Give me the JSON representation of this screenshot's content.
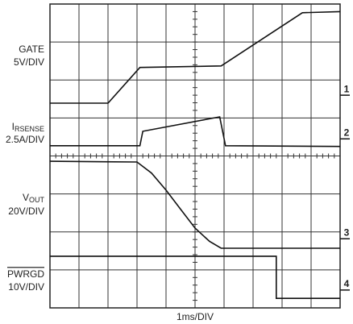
{
  "chart_data": {
    "type": "line",
    "x_label": "1ms/DIV",
    "xlim": [
      0,
      10
    ],
    "ylim": [
      0,
      8
    ],
    "xticks": [
      0,
      1,
      2,
      3,
      4,
      5,
      6,
      7,
      8,
      9,
      10
    ],
    "yticks": [
      0,
      1,
      2,
      3,
      4,
      5,
      6,
      7,
      8
    ],
    "grid": true,
    "color": "#111111",
    "series": [
      {
        "name": "GATE",
        "scale": "5V/DIV",
        "marker": "1",
        "marker_level": 5.6,
        "x": [
          0,
          2.0,
          3.1,
          5.9,
          8.7,
          10
        ],
        "values": [
          5.39,
          5.39,
          6.33,
          6.37,
          7.77,
          7.8
        ]
      },
      {
        "name": {
          "main": "I",
          "sub": "RSENSE"
        },
        "scale": "2.5A/DIV",
        "marker": "2",
        "marker_level": 4.45,
        "x": [
          0,
          3.1,
          3.2,
          5.85,
          6.05,
          10
        ],
        "values": [
          4.27,
          4.27,
          4.65,
          5.03,
          4.27,
          4.25
        ]
      },
      {
        "name": {
          "main": "V",
          "sub": "OUT"
        },
        "scale": "20V/DIV",
        "marker": "3",
        "marker_level": 1.82,
        "x": [
          0,
          3.0,
          3.5,
          4.0,
          4.5,
          5.0,
          5.5,
          5.9,
          10
        ],
        "values": [
          3.86,
          3.84,
          3.55,
          3.1,
          2.6,
          2.1,
          1.75,
          1.57,
          1.57
        ]
      },
      {
        "name": "PWRGD",
        "scale": "10V/DIV",
        "marker": "4",
        "marker_level": 0.47,
        "x": [
          0,
          7.8,
          7.8,
          10
        ],
        "values": [
          1.36,
          1.36,
          0.25,
          0.25
        ]
      }
    ]
  }
}
